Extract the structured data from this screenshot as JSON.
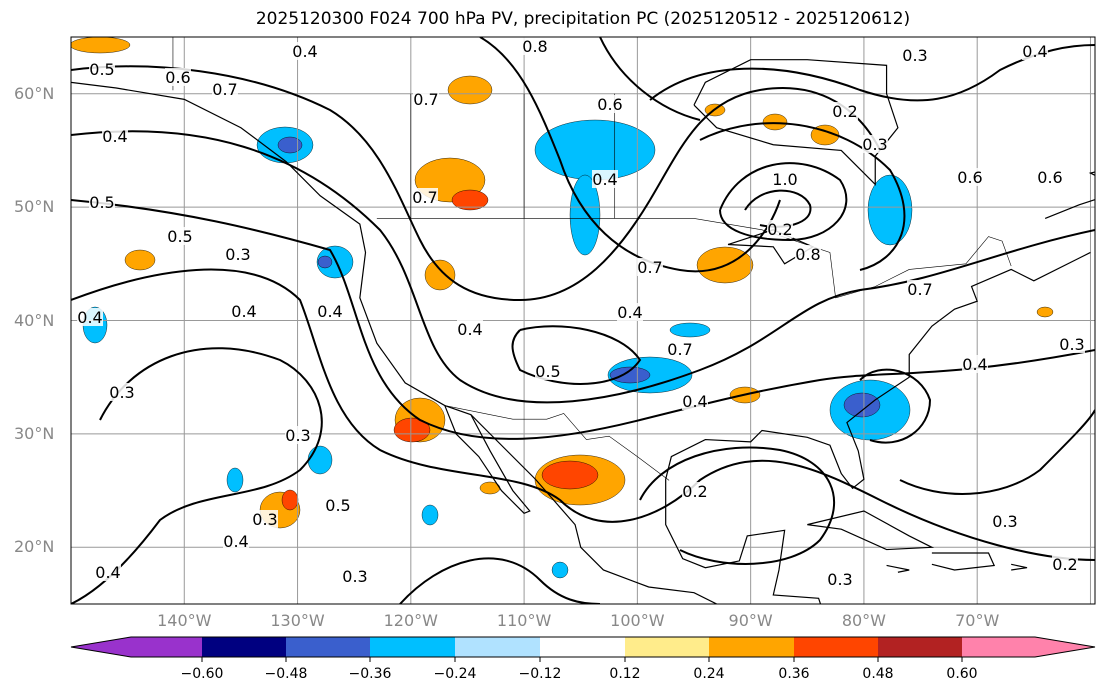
{
  "title": "2025120300 F024 700 hPa PV, precipitation PC (2025120512 - 2025120612)",
  "lat_labels": [
    "60°N",
    "50°N",
    "40°N",
    "30°N",
    "20°N"
  ],
  "lon_labels": [
    "140°W",
    "130°W",
    "120°W",
    "110°W",
    "100°W",
    "90°W",
    "80°W",
    "70°W"
  ],
  "extent": {
    "lon": [
      -150,
      -59.6
    ],
    "lat": [
      15,
      65
    ]
  },
  "colorbar": {
    "ticks": [
      "−0.60",
      "−0.48",
      "−0.36",
      "−0.24",
      "−0.12",
      "0.12",
      "0.24",
      "0.36",
      "0.48",
      "0.60"
    ],
    "colors": [
      "#9932cc",
      "#000080",
      "#3a5fcd",
      "#00bfff",
      "#b0e2ff",
      "#ffffff",
      "#ffec8b",
      "#ffa500",
      "#ff4500",
      "#b22222",
      "#ff82ab"
    ]
  },
  "contour_labels": [
    "0.5",
    "0.6",
    "0.7",
    "0.4",
    "0.4",
    "0.5",
    "0.5",
    "0.3",
    "0.4",
    "0.4",
    "0.3",
    "0.3",
    "0.5",
    "0.4",
    "0.3",
    "0.4",
    "0.4",
    "0.3",
    "0.8",
    "0.7",
    "0.7",
    "0.4",
    "0.5",
    "0.4",
    "0.7",
    "0.4",
    "0.7",
    "0.3",
    "0.2",
    "1.0",
    "0.2",
    "0.3",
    "0.4",
    "0.6",
    "0.6",
    "0.7",
    "0.4",
    "0.3",
    "0.4",
    "0.2",
    "0.3",
    "0.3",
    "0.2",
    "0.8",
    "0.6"
  ]
}
